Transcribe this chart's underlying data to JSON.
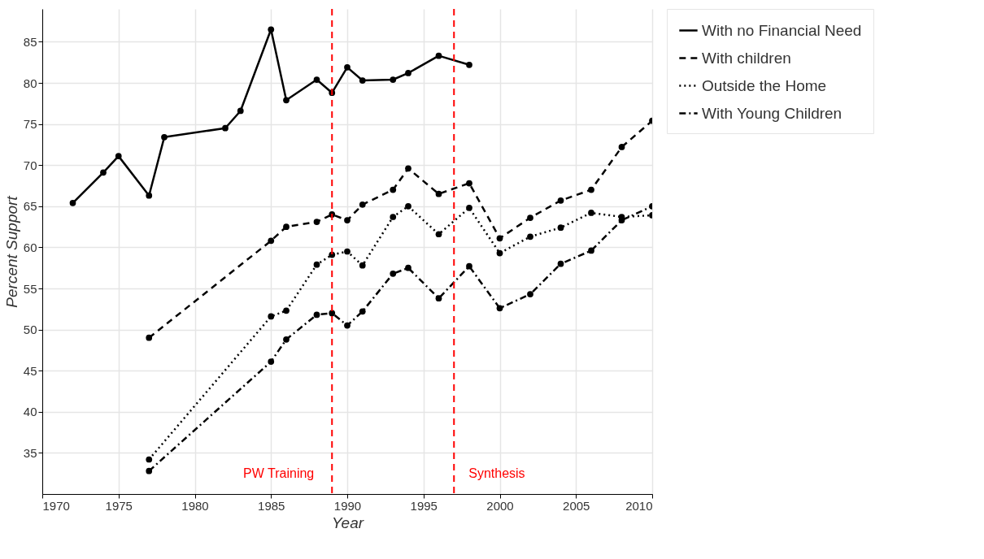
{
  "chart_data": {
    "type": "line",
    "xlabel": "Year",
    "ylabel": "Percent Support",
    "xlim": [
      1970,
      2010
    ],
    "xticks": [
      1970,
      1975,
      1980,
      1985,
      1990,
      1995,
      2000,
      2005,
      2010
    ],
    "ylim": [
      30,
      89
    ],
    "yticks": [
      35,
      40,
      45,
      50,
      55,
      60,
      65,
      70,
      75,
      80,
      85
    ],
    "grid": true,
    "legend": "top right",
    "marker": "circle",
    "series": [
      {
        "name": "With no Financial Need",
        "color": "#000000",
        "line_style": "solid",
        "x": [
          1972,
          1974,
          1975,
          1977,
          1978,
          1982,
          1983,
          1985,
          1986,
          1988,
          1989,
          1990,
          1991,
          1993,
          1994,
          1996,
          1998
        ],
        "values": [
          65.4,
          69.1,
          71.1,
          66.3,
          73.4,
          74.5,
          76.6,
          86.5,
          77.9,
          80.4,
          78.8,
          81.9,
          80.3,
          80.4,
          81.2,
          83.3,
          82.2
        ]
      },
      {
        "name": "With children",
        "color": "#000000",
        "line_style": "dashed",
        "x": [
          1977,
          1985,
          1986,
          1988,
          1989,
          1990,
          1991,
          1993,
          1994,
          1996,
          1998,
          2000,
          2002,
          2004,
          2006,
          2008,
          2010
        ],
        "values": [
          49.0,
          60.8,
          62.5,
          63.1,
          64.0,
          63.3,
          65.2,
          67.0,
          69.6,
          66.5,
          67.8,
          61.1,
          63.6,
          65.7,
          67.0,
          72.2,
          75.4
        ]
      },
      {
        "name": "Outside the Home",
        "color": "#000000",
        "line_style": "dotted",
        "x": [
          1977,
          1985,
          1986,
          1988,
          1989,
          1990,
          1991,
          1993,
          1994,
          1996,
          1998,
          2000,
          2002,
          2004,
          2006,
          2008,
          2010
        ],
        "values": [
          34.2,
          51.6,
          52.3,
          57.9,
          59.1,
          59.5,
          57.8,
          63.7,
          65.0,
          61.6,
          64.8,
          59.3,
          61.3,
          62.4,
          64.2,
          63.7,
          63.9
        ]
      },
      {
        "name": "With Young Children",
        "color": "#000000",
        "line_style": "dashdot",
        "x": [
          1977,
          1985,
          1986,
          1988,
          1989,
          1990,
          1991,
          1993,
          1994,
          1996,
          1998,
          2000,
          2002,
          2004,
          2006,
          2008,
          2010
        ],
        "values": [
          32.8,
          46.1,
          48.8,
          51.8,
          52.0,
          50.5,
          52.2,
          56.8,
          57.5,
          53.8,
          57.7,
          52.6,
          54.3,
          58.0,
          59.6,
          63.3,
          65.0
        ]
      }
    ],
    "ref_lines": [
      {
        "axis": "x",
        "value": 1989,
        "label": "PW Training",
        "color": "#ff0000",
        "line_style": "dashed"
      },
      {
        "axis": "x",
        "value": 1997,
        "label": "Synthesis",
        "color": "#ff0000",
        "line_style": "dashed"
      }
    ]
  }
}
